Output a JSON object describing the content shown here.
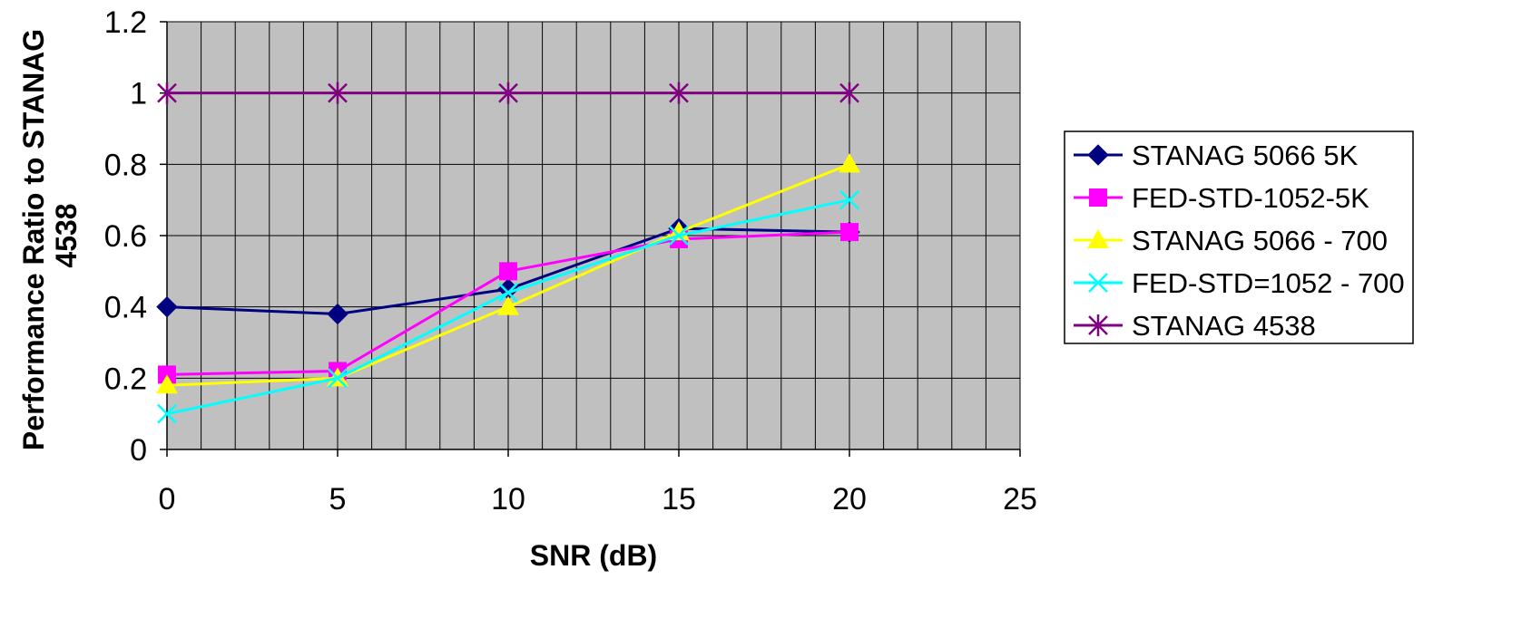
{
  "chart_data": {
    "type": "line",
    "xlabel": "SNR (dB)",
    "ylabel_lines": [
      "Performance Ratio to STANAG",
      "4538"
    ],
    "xlim": [
      0,
      25
    ],
    "ylim": [
      0,
      1.2
    ],
    "x_ticks": [
      0,
      5,
      10,
      15,
      20,
      25
    ],
    "y_ticks": [
      0,
      0.2,
      0.4,
      0.6,
      0.8,
      1,
      1.2
    ],
    "x_tick_labels": [
      "0",
      "5",
      "10",
      "15",
      "20",
      "25"
    ],
    "y_tick_labels": [
      "0",
      "0.2",
      "0.4",
      "0.6",
      "0.8",
      "1",
      "1.2"
    ],
    "grid": true,
    "plot_background": "#c0c0c0",
    "legend_position": "right",
    "x": [
      0,
      5,
      10,
      15,
      20
    ],
    "series": [
      {
        "name": "STANAG 5066 5K",
        "color": "#000080",
        "marker": "diamond",
        "values": [
          0.4,
          0.38,
          0.45,
          0.62,
          0.61
        ]
      },
      {
        "name": "FED-STD-1052-5K",
        "color": "#ff00ff",
        "marker": "square",
        "values": [
          0.21,
          0.22,
          0.5,
          0.59,
          0.61
        ]
      },
      {
        "name": "STANAG 5066 - 700",
        "color": "#ffff00",
        "marker": "triangle",
        "values": [
          0.18,
          0.2,
          0.4,
          0.61,
          0.8
        ]
      },
      {
        "name": "FED-STD=1052 - 700",
        "color": "#00ffff",
        "marker": "x",
        "values": [
          0.1,
          0.2,
          0.44,
          0.6,
          0.7
        ]
      },
      {
        "name": "STANAG 4538",
        "color": "#800080",
        "marker": "star",
        "values": [
          1,
          1,
          1,
          1,
          1
        ]
      }
    ]
  }
}
